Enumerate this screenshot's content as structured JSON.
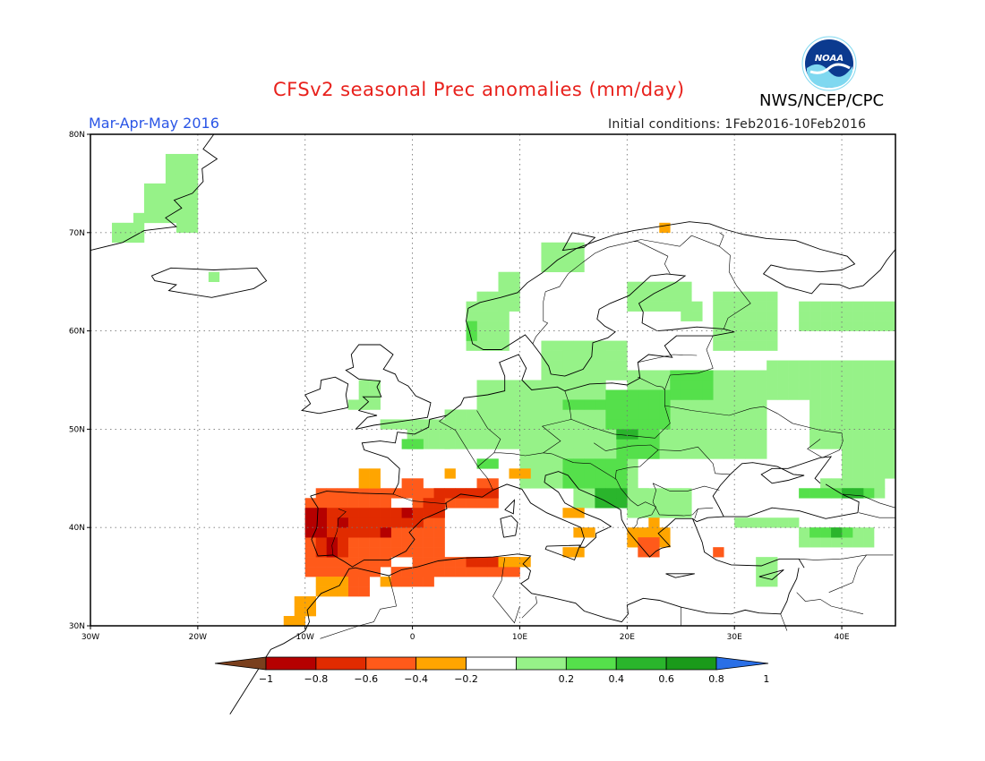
{
  "header": {
    "title": "CFSv2 seasonal Prec anomalies (mm/day)",
    "agency": "NWS/NCEP/CPC",
    "period": "Mar-Apr-May 2016",
    "initial_conditions": "Initial conditions: 1Feb2016-10Feb2016",
    "logo_text": "NOAA"
  },
  "map": {
    "lon_range": [
      -30,
      45
    ],
    "lat_range": [
      30,
      80
    ],
    "lat_labels": [
      "30N",
      "40N",
      "50N",
      "60N",
      "70N",
      "80N"
    ],
    "lon_labels": [
      "30W",
      "20W",
      "10W",
      "0",
      "10E",
      "20E",
      "30E",
      "40E"
    ],
    "grid": "dotted",
    "anomaly_regions": [
      {
        "region": "Iberian Peninsula (west)",
        "level": "< -0.8"
      },
      {
        "region": "Iberian Peninsula (central/east)",
        "level": "-0.8 to -0.6"
      },
      {
        "region": "Southern France",
        "level": "-0.6 to -0.4"
      },
      {
        "region": "NW Africa coast",
        "level": "-0.4 to -0.2"
      },
      {
        "region": "Algeria / Tunisia coast",
        "level": "-0.6 to -0.4"
      },
      {
        "region": "Greece",
        "level": "-0.4 to -0.2"
      },
      {
        "region": "Central & Eastern Europe",
        "level": "0.2 to 0.4"
      },
      {
        "region": "Poland / Czechia / Hungary core",
        "level": "0.4 to 0.6"
      },
      {
        "region": "Western Balkans",
        "level": "0.4 to 0.8"
      },
      {
        "region": "Norway / Sweden / Finland",
        "level": "0.2 to 0.4"
      },
      {
        "region": "Western Russia / Ukraine",
        "level": "0.2 to 0.4"
      },
      {
        "region": "Greenland / Iceland",
        "level": "0.2 to 0.4"
      },
      {
        "region": "Turkey / Caucasus",
        "level": "0.2 to 0.8"
      }
    ]
  },
  "colorbar": {
    "ticks": [
      "−1",
      "−0.8",
      "−0.6",
      "−0.4",
      "−0.2",
      "0.2",
      "0.4",
      "0.6",
      "0.8",
      "1"
    ],
    "colors": [
      "#7a3f1d",
      "#b50000",
      "#e12b00",
      "#ff5a1a",
      "#ffa500",
      "#ffffff",
      "#96f288",
      "#55e04b",
      "#2ab52c",
      "#1a9a1a",
      "#2a6fe6"
    ]
  }
}
